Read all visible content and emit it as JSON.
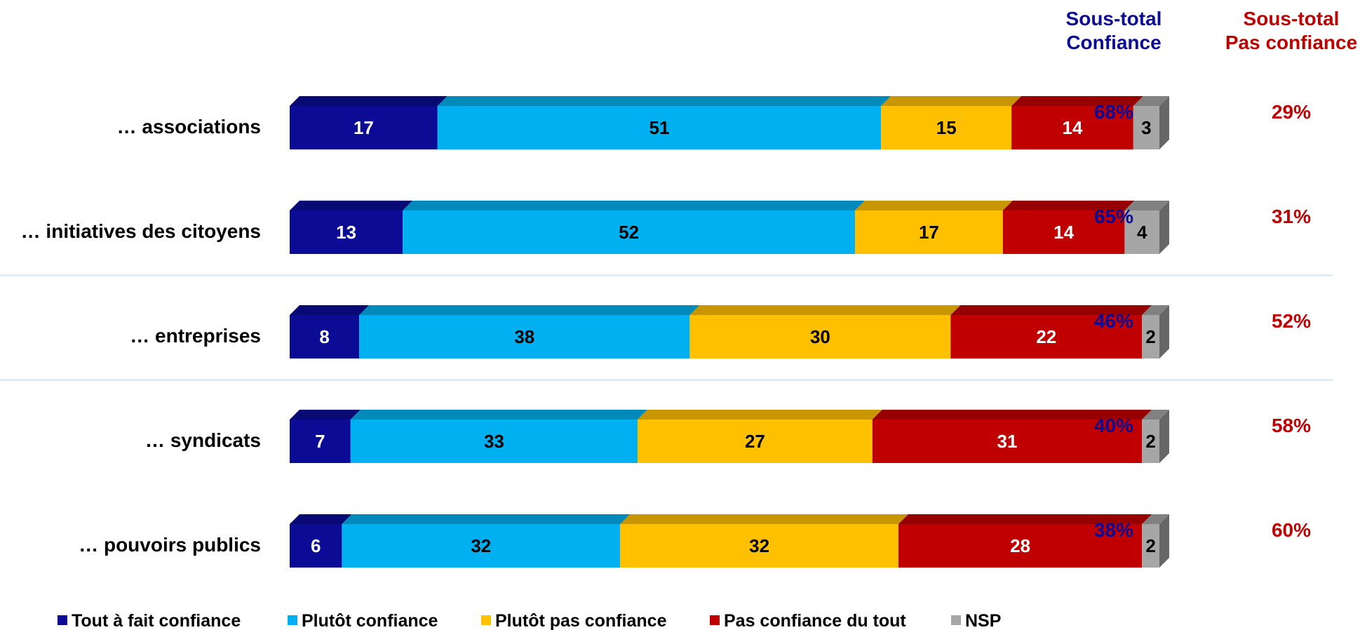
{
  "chart_data": {
    "type": "bar",
    "orientation": "horizontal",
    "stacked": true,
    "categories": [
      "… associations",
      "… initiatives des citoyens",
      "… entreprises",
      "… syndicats",
      "… pouvoirs publics"
    ],
    "series": [
      {
        "name": "Tout à fait confiance",
        "color": "#0b0b96",
        "label_color": "#ffffff",
        "values": [
          17,
          13,
          8,
          7,
          6
        ]
      },
      {
        "name": "Plutôt confiance",
        "color": "#00b0f0",
        "label_color": "#000000",
        "values": [
          51,
          52,
          38,
          33,
          32
        ]
      },
      {
        "name": "Plutôt pas confiance",
        "color": "#ffc000",
        "label_color": "#000000",
        "values": [
          15,
          17,
          30,
          27,
          32
        ]
      },
      {
        "name": "Pas confiance du tout",
        "color": "#c00000",
        "label_color": "#ffffff",
        "values": [
          14,
          14,
          22,
          31,
          28
        ]
      },
      {
        "name": "NSP",
        "color": "#a6a6a6",
        "label_color": "#000000",
        "values": [
          3,
          4,
          2,
          2,
          2
        ]
      }
    ],
    "subtotals": [
      {
        "title": [
          "Sous-total",
          "Confiance"
        ],
        "color": "#0b0b96",
        "values": [
          "68%",
          "65%",
          "46%",
          "40%",
          "38%"
        ]
      },
      {
        "title": [
          "Sous-total",
          "Pas confiance"
        ],
        "color": "#c00000",
        "values": [
          "29%",
          "31%",
          "52%",
          "58%",
          "60%"
        ]
      }
    ],
    "group_separators_after_index": [
      1,
      2
    ],
    "legend_position": "bottom",
    "grid": false
  }
}
